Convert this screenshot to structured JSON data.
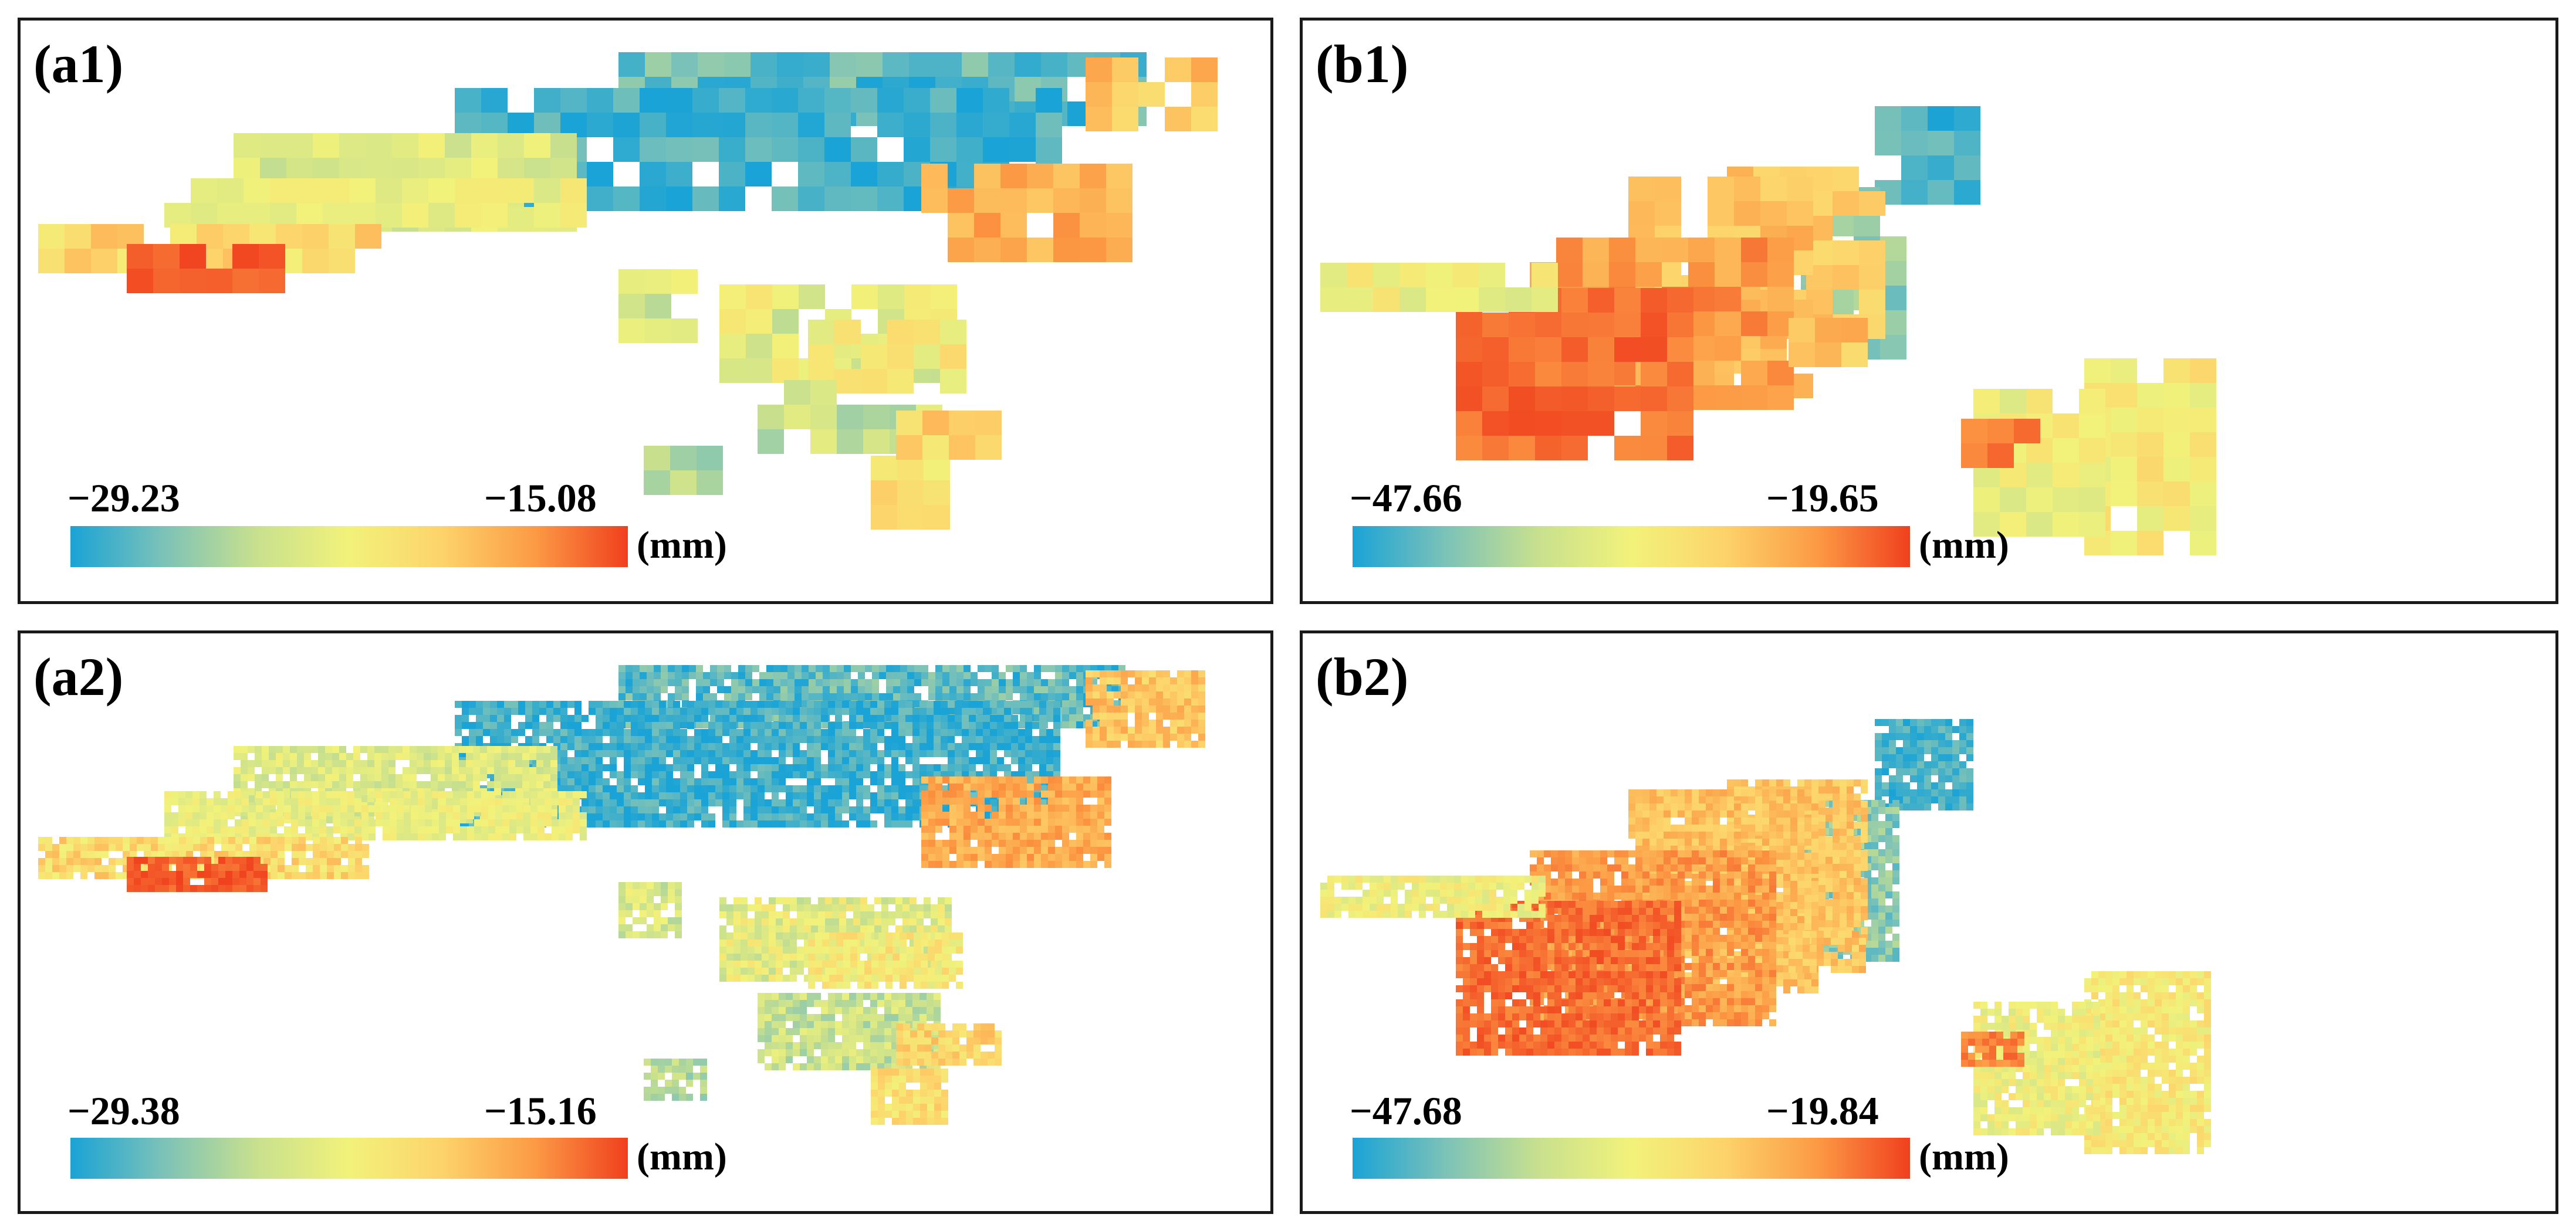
{
  "colors": {
    "scale": [
      "#1aa3d6",
      "#7cc2b8",
      "#c8e08e",
      "#f2f27a",
      "#fdd36b",
      "#fc9a45",
      "#f0401e"
    ],
    "background": "#ffffff"
  },
  "panels": [
    {
      "id": "a1",
      "label": "(a1)",
      "min": "−29.23",
      "max": "−15.08",
      "unit": "(mm)",
      "style": "grid"
    },
    {
      "id": "b1",
      "label": "(b1)",
      "min": "−47.66",
      "max": "−19.65",
      "unit": "(mm)",
      "style": "grid"
    },
    {
      "id": "a2",
      "label": "(a2)",
      "min": "−29.38",
      "max": "−15.16",
      "unit": "(mm)",
      "style": "fine"
    },
    {
      "id": "b2",
      "label": "(b2)",
      "min": "−47.68",
      "max": "−19.84",
      "unit": "(mm)",
      "style": "fine"
    }
  ]
}
